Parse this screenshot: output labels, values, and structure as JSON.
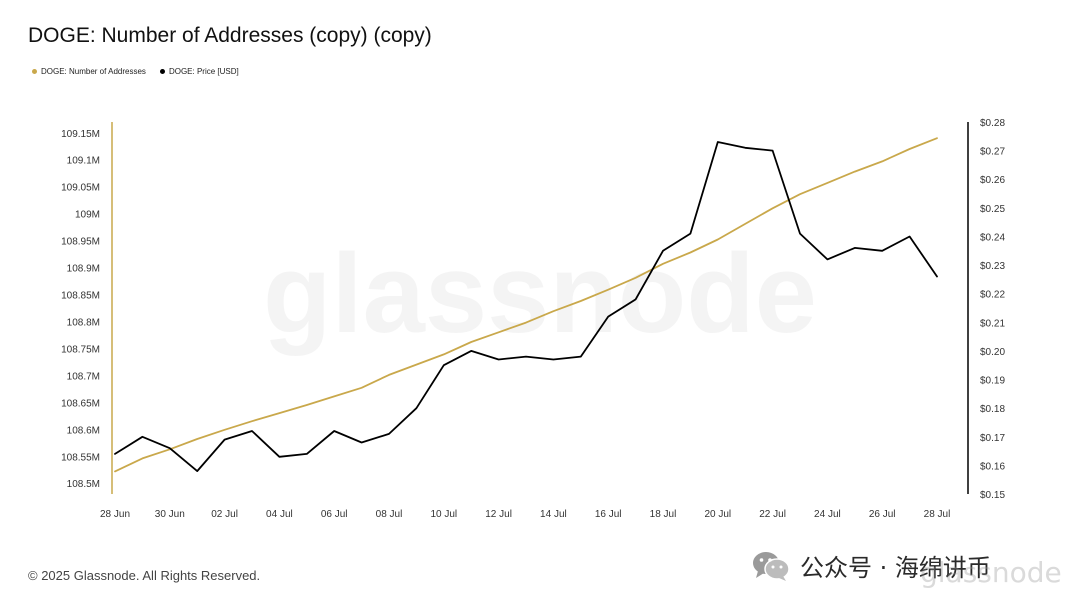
{
  "title": "DOGE: Number of Addresses (copy) (copy)",
  "legend": {
    "items": [
      {
        "label": "DOGE: Number of Addresses",
        "color": "#c9a84b"
      },
      {
        "label": "DOGE: Price [USD]",
        "color": "#000000"
      }
    ]
  },
  "watermark": "glassnode",
  "footer": {
    "copyright": "© 2025 Glassnode. All Rights Reserved.",
    "wechat_label": "公众号 · 海绵讲币",
    "wechat_icon": "wechat-icon",
    "corner_watermark": "glassnode"
  },
  "chart_data": {
    "type": "line",
    "x": [
      "28 Jun",
      "29 Jun",
      "30 Jun",
      "01 Jul",
      "02 Jul",
      "03 Jul",
      "04 Jul",
      "05 Jul",
      "06 Jul",
      "07 Jul",
      "08 Jul",
      "09 Jul",
      "10 Jul",
      "11 Jul",
      "12 Jul",
      "13 Jul",
      "14 Jul",
      "15 Jul",
      "16 Jul",
      "17 Jul",
      "18 Jul",
      "19 Jul",
      "20 Jul",
      "21 Jul",
      "22 Jul",
      "23 Jul",
      "24 Jul",
      "25 Jul",
      "26 Jul",
      "27 Jul",
      "28 Jul"
    ],
    "x_tick_labels": [
      "28 Jun",
      "30 Jun",
      "02 Jul",
      "04 Jul",
      "06 Jul",
      "08 Jul",
      "10 Jul",
      "12 Jul",
      "14 Jul",
      "16 Jul",
      "18 Jul",
      "20 Jul",
      "22 Jul",
      "24 Jul",
      "26 Jul",
      "28 Jul"
    ],
    "series": [
      {
        "name": "DOGE: Number of Addresses",
        "axis": "left",
        "color": "#c9a84b",
        "values": [
          108.522,
          108.546,
          108.563,
          108.582,
          108.599,
          108.615,
          108.63,
          108.645,
          108.661,
          108.677,
          108.701,
          108.72,
          108.739,
          108.762,
          108.78,
          108.798,
          108.819,
          108.838,
          108.859,
          108.881,
          108.907,
          108.928,
          108.952,
          108.981,
          109.01,
          109.036,
          109.057,
          109.078,
          109.097,
          109.12,
          109.14
        ]
      },
      {
        "name": "DOGE: Price [USD]",
        "axis": "right",
        "color": "#000000",
        "values": [
          0.164,
          0.17,
          0.166,
          0.158,
          0.169,
          0.172,
          0.163,
          0.164,
          0.172,
          0.168,
          0.171,
          0.18,
          0.195,
          0.2,
          0.197,
          0.198,
          0.197,
          0.198,
          0.212,
          0.218,
          0.235,
          0.241,
          0.273,
          0.271,
          0.27,
          0.241,
          0.232,
          0.236,
          0.235,
          0.24,
          0.226
        ]
      }
    ],
    "y_left": {
      "ticks": [
        108.5,
        108.55,
        108.6,
        108.65,
        108.7,
        108.75,
        108.8,
        108.85,
        108.9,
        108.95,
        109,
        109.05,
        109.1,
        109.15
      ],
      "tick_labels": [
        "108.5M",
        "108.55M",
        "108.6M",
        "108.65M",
        "108.7M",
        "108.75M",
        "108.8M",
        "108.85M",
        "108.9M",
        "108.95M",
        "109M",
        "109.05M",
        "109.1M",
        "109.15M"
      ],
      "range": [
        108.48,
        109.17
      ]
    },
    "y_right": {
      "ticks": [
        0.15,
        0.16,
        0.17,
        0.18,
        0.19,
        0.2,
        0.21,
        0.22,
        0.23,
        0.24,
        0.25,
        0.26,
        0.27,
        0.28
      ],
      "tick_labels": [
        "$0.15",
        "$0.16",
        "$0.17",
        "$0.18",
        "$0.19",
        "$0.20",
        "$0.21",
        "$0.22",
        "$0.23",
        "$0.24",
        "$0.25",
        "$0.26",
        "$0.27",
        "$0.28"
      ],
      "range": [
        0.15,
        0.28
      ]
    },
    "grid": false,
    "legend_position": "top-left"
  }
}
